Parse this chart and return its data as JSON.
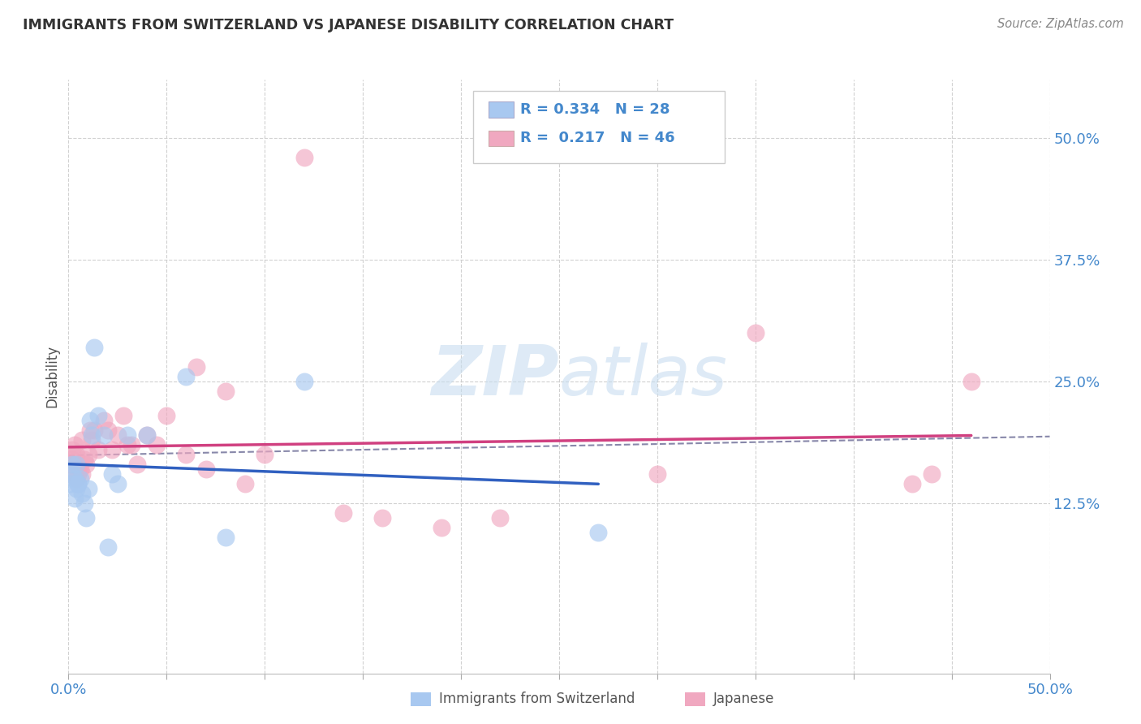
{
  "title": "IMMIGRANTS FROM SWITZERLAND VS JAPANESE DISABILITY CORRELATION CHART",
  "source": "Source: ZipAtlas.com",
  "ylabel": "Disability",
  "xlim": [
    0,
    0.5
  ],
  "ylim": [
    -0.05,
    0.56
  ],
  "ytick_labels": [
    "12.5%",
    "25.0%",
    "37.5%",
    "50.0%"
  ],
  "ytick_values": [
    0.125,
    0.25,
    0.375,
    0.5
  ],
  "xtick_values": [
    0.0,
    0.05,
    0.1,
    0.15,
    0.2,
    0.25,
    0.3,
    0.35,
    0.4,
    0.45,
    0.5
  ],
  "legend_R1": "0.334",
  "legend_N1": "28",
  "legend_R2": "0.217",
  "legend_N2": "46",
  "series1_color": "#a8c8f0",
  "series1_edge": "#7aaad8",
  "series2_color": "#f0a8c0",
  "series2_edge": "#d87aaa",
  "line1_color": "#3060c0",
  "line2_color": "#d04080",
  "trend_line_color": "#8888aa",
  "background_color": "#ffffff",
  "watermark_color": "#c8ddf0",
  "grid_color": "#cccccc",
  "ytick_color": "#4488cc",
  "xtick_color": "#4488cc",
  "swiss_x": [
    0.001,
    0.002,
    0.002,
    0.003,
    0.003,
    0.004,
    0.004,
    0.005,
    0.005,
    0.006,
    0.007,
    0.008,
    0.009,
    0.01,
    0.011,
    0.012,
    0.013,
    0.015,
    0.018,
    0.02,
    0.022,
    0.025,
    0.03,
    0.04,
    0.06,
    0.08,
    0.12,
    0.27
  ],
  "swiss_y": [
    0.145,
    0.155,
    0.165,
    0.13,
    0.15,
    0.14,
    0.165,
    0.145,
    0.145,
    0.15,
    0.135,
    0.125,
    0.11,
    0.14,
    0.21,
    0.195,
    0.285,
    0.215,
    0.195,
    0.08,
    0.155,
    0.145,
    0.195,
    0.195,
    0.255,
    0.09,
    0.25,
    0.095
  ],
  "japanese_x": [
    0.001,
    0.002,
    0.002,
    0.003,
    0.003,
    0.004,
    0.004,
    0.005,
    0.005,
    0.006,
    0.007,
    0.007,
    0.008,
    0.009,
    0.01,
    0.011,
    0.012,
    0.013,
    0.015,
    0.018,
    0.02,
    0.022,
    0.025,
    0.028,
    0.03,
    0.032,
    0.035,
    0.04,
    0.045,
    0.05,
    0.06,
    0.065,
    0.07,
    0.08,
    0.09,
    0.1,
    0.12,
    0.14,
    0.16,
    0.19,
    0.22,
    0.3,
    0.35,
    0.43,
    0.44,
    0.46
  ],
  "japanese_y": [
    0.165,
    0.17,
    0.18,
    0.155,
    0.185,
    0.15,
    0.175,
    0.155,
    0.16,
    0.16,
    0.19,
    0.155,
    0.17,
    0.165,
    0.175,
    0.2,
    0.19,
    0.2,
    0.18,
    0.21,
    0.2,
    0.18,
    0.195,
    0.215,
    0.185,
    0.185,
    0.165,
    0.195,
    0.185,
    0.215,
    0.175,
    0.265,
    0.16,
    0.24,
    0.145,
    0.175,
    0.48,
    0.115,
    0.11,
    0.1,
    0.11,
    0.155,
    0.3,
    0.145,
    0.155,
    0.25
  ]
}
